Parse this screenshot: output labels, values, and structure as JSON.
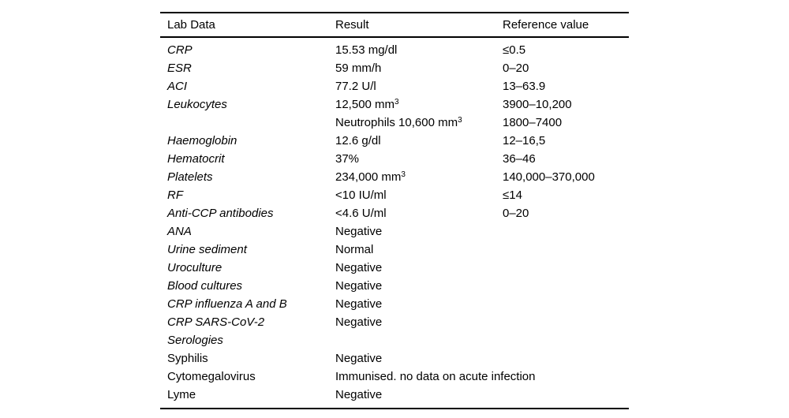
{
  "table": {
    "headers": [
      "Lab Data",
      "Result",
      "Reference value"
    ],
    "rows": [
      {
        "lab": "CRP",
        "italic": true,
        "indent": false,
        "result": "15.53 mg/dl",
        "ref": "≤0.5"
      },
      {
        "lab": "ESR",
        "italic": true,
        "indent": false,
        "result": "59 mm/h",
        "ref": "0–20"
      },
      {
        "lab": "ACI",
        "italic": true,
        "indent": false,
        "result": "77.2 U/l",
        "ref": "13–63.9"
      },
      {
        "lab": "Leukocytes",
        "italic": true,
        "indent": false,
        "result": "12,500 mm",
        "sup": "3",
        "ref": "3900–10,200"
      },
      {
        "lab": "",
        "italic": true,
        "indent": false,
        "result": "Neutrophils 10,600 mm",
        "sup": "3",
        "ref": "1800–7400"
      },
      {
        "lab": "Haemoglobin",
        "italic": true,
        "indent": false,
        "result": "12.6 g/dl",
        "ref": "12–16,5"
      },
      {
        "lab": "Hematocrit",
        "italic": true,
        "indent": false,
        "result": "37%",
        "ref": "36–46"
      },
      {
        "lab": "Platelets",
        "italic": true,
        "indent": false,
        "result": "234,000 mm",
        "sup": "3",
        "ref": "140,000–370,000"
      },
      {
        "lab": "RF",
        "italic": true,
        "indent": false,
        "result": "<10 IU/ml",
        "ref": "≤14"
      },
      {
        "lab": "Anti-CCP antibodies",
        "italic": true,
        "indent": false,
        "result": "<4.6 U/ml",
        "ref": "0–20"
      },
      {
        "lab": "ANA",
        "italic": true,
        "indent": false,
        "result": "Negative",
        "ref": ""
      },
      {
        "lab": "Urine sediment",
        "italic": true,
        "indent": false,
        "result": "Normal",
        "ref": ""
      },
      {
        "lab": "Uroculture",
        "italic": true,
        "indent": false,
        "result": "Negative",
        "ref": ""
      },
      {
        "lab": "Blood cultures",
        "italic": true,
        "indent": false,
        "result": "Negative",
        "ref": ""
      },
      {
        "lab": "CRP influenza A and B",
        "italic": true,
        "indent": false,
        "result": "Negative",
        "ref": ""
      },
      {
        "lab": "CRP SARS-CoV-2",
        "italic": true,
        "indent": false,
        "result": "Negative",
        "ref": ""
      },
      {
        "lab": "Serologies",
        "italic": true,
        "indent": false,
        "result": "",
        "ref": ""
      },
      {
        "lab": "Syphilis",
        "italic": false,
        "indent": true,
        "result": "Negative",
        "ref": ""
      },
      {
        "lab": "Cytomegalovirus",
        "italic": false,
        "indent": true,
        "result": "Immunised. no data on acute infection",
        "ref": ""
      },
      {
        "lab": "Lyme",
        "italic": false,
        "indent": true,
        "result": "Negative",
        "ref": ""
      }
    ]
  }
}
